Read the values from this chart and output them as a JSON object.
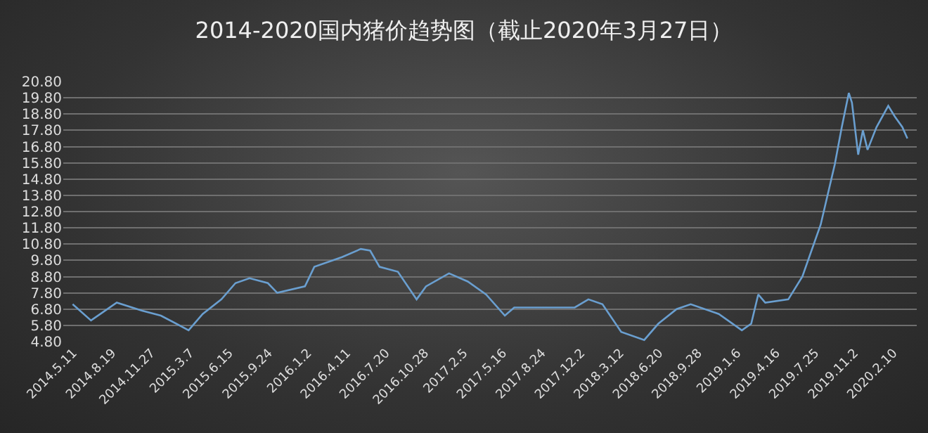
{
  "chart_data": {
    "type": "line",
    "title": "2014-2020国内猪价趋势图（截止2020年3月27日）",
    "x": [
      "2014-05-10",
      "2014-06-26",
      "2014-07-20",
      "2014-08-31",
      "2014-11-04",
      "2014-12-22",
      "2015-03-03",
      "2015-04-08",
      "2015-05-26",
      "2015-07-01",
      "2015-08-06",
      "2015-09-22",
      "2015-10-16",
      "2015-12-26",
      "2016-01-19",
      "2016-03-30",
      "2016-05-17",
      "2016-06-10",
      "2016-07-04",
      "2016-08-20",
      "2016-10-07",
      "2016-10-31",
      "2016-12-29",
      "2017-02-15",
      "2017-04-03",
      "2017-05-21",
      "2017-06-14",
      "2017-11-16",
      "2017-12-21",
      "2018-01-26",
      "2018-03-15",
      "2018-05-13",
      "2018-06-18",
      "2018-08-04",
      "2018-09-09",
      "2018-11-20",
      "2019-01-18",
      "2019-02-11",
      "2019-03-01",
      "2019-03-19",
      "2019-05-17",
      "2019-06-22",
      "2019-08-08",
      "2019-09-13",
      "2019-10-01",
      "2019-10-19",
      "2019-10-27",
      "2019-11-12",
      "2019-11-24",
      "2019-12-06",
      "2019-12-29",
      "2020-01-28",
      "2020-02-15",
      "2020-03-04",
      "2020-03-17"
    ],
    "series": [
      {
        "color": "#6a9fd0",
        "values": [
          7.1,
          6.1,
          6.5,
          7.2,
          6.7,
          6.4,
          5.5,
          6.5,
          7.4,
          8.4,
          8.7,
          8.4,
          7.8,
          8.2,
          9.4,
          10.0,
          10.5,
          10.4,
          9.4,
          9.1,
          7.4,
          8.2,
          9.0,
          8.5,
          7.7,
          6.4,
          6.9,
          6.9,
          7.4,
          7.1,
          5.4,
          4.9,
          5.9,
          6.8,
          7.1,
          6.5,
          5.5,
          5.9,
          7.7,
          7.2,
          7.4,
          8.8,
          12.0,
          15.7,
          18.0,
          20.1,
          19.5,
          16.3,
          17.8,
          16.6,
          18.0,
          19.3,
          18.6,
          18.0,
          17.3
        ]
      }
    ],
    "xlim": [
      "2014-04-16",
      "2020-04-10"
    ],
    "xticks": [
      {
        "value": "2014-05-11",
        "label": "2014.5.11"
      },
      {
        "value": "2014-08-19",
        "label": "2014.8.19"
      },
      {
        "value": "2014-11-27",
        "label": "2014.11.27"
      },
      {
        "value": "2015-03-07",
        "label": "2015.3.7"
      },
      {
        "value": "2015-06-15",
        "label": "2015.6.15"
      },
      {
        "value": "2015-09-24",
        "label": "2015.9.24"
      },
      {
        "value": "2016-01-02",
        "label": "2016.1.2"
      },
      {
        "value": "2016-04-11",
        "label": "2016.4.11"
      },
      {
        "value": "2016-07-20",
        "label": "2016.7.20"
      },
      {
        "value": "2016-10-28",
        "label": "2016.10.28"
      },
      {
        "value": "2017-02-05",
        "label": "2017.2.5"
      },
      {
        "value": "2017-05-16",
        "label": "2017.5.16"
      },
      {
        "value": "2017-08-24",
        "label": "2017.8.24"
      },
      {
        "value": "2017-12-02",
        "label": "2017.12.2"
      },
      {
        "value": "2018-03-12",
        "label": "2018.3.12"
      },
      {
        "value": "2018-06-20",
        "label": "2018.6.20"
      },
      {
        "value": "2018-09-28",
        "label": "2018.9.28"
      },
      {
        "value": "2019-01-06",
        "label": "2019.1.6"
      },
      {
        "value": "2019-04-16",
        "label": "2019.4.16"
      },
      {
        "value": "2019-07-25",
        "label": "2019.7.25"
      },
      {
        "value": "2019-11-02",
        "label": "2019.11.2"
      },
      {
        "value": "2020-02-10",
        "label": "2020.2.10"
      }
    ],
    "ylim": [
      4.8,
      20.8
    ],
    "yticks": [
      {
        "value": 4.8,
        "label": "4.80"
      },
      {
        "value": 5.8,
        "label": "5.80"
      },
      {
        "value": 6.8,
        "label": "6.80"
      },
      {
        "value": 7.8,
        "label": "7.80"
      },
      {
        "value": 8.8,
        "label": "8.80"
      },
      {
        "value": 9.8,
        "label": "9.80"
      },
      {
        "value": 10.8,
        "label": "10.80"
      },
      {
        "value": 11.8,
        "label": "11.80"
      },
      {
        "value": 12.8,
        "label": "12.80"
      },
      {
        "value": 13.8,
        "label": "13.80"
      },
      {
        "value": 14.8,
        "label": "14.80"
      },
      {
        "value": 15.8,
        "label": "15.80"
      },
      {
        "value": 16.8,
        "label": "16.80"
      },
      {
        "value": 17.8,
        "label": "17.80"
      },
      {
        "value": 18.8,
        "label": "18.80"
      },
      {
        "value": 19.8,
        "label": "19.80"
      },
      {
        "value": 20.8,
        "label": "20.80"
      }
    ],
    "grid": "y",
    "marker": "none",
    "line_style": "solid"
  }
}
